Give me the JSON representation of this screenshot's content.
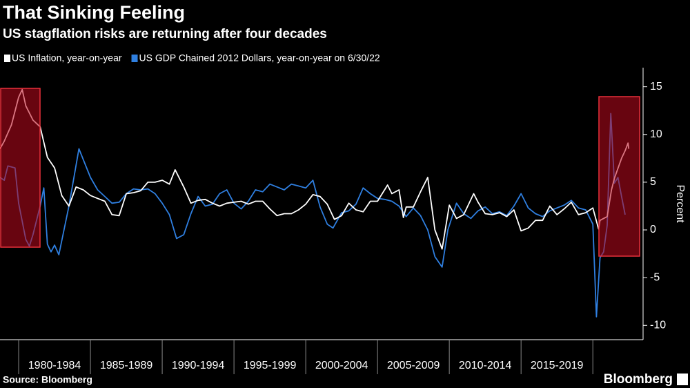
{
  "chart_data": {
    "type": "line",
    "title": "That Sinking Feeling",
    "subtitle": "US stagflation risks are returning after four decades",
    "y_label": "Percent",
    "source": "Source: Bloomberg",
    "brand": "Bloomberg",
    "xlim": [
      1978.7,
      2023.5
    ],
    "ylim": [
      -11.5,
      17
    ],
    "yticks": [
      15,
      10,
      5,
      0,
      -5,
      -10
    ],
    "xticks": [
      {
        "value": 1980,
        "label": "1980-1984"
      },
      {
        "value": 1985,
        "label": "1985-1989"
      },
      {
        "value": 1990,
        "label": "1990-1994"
      },
      {
        "value": 1995,
        "label": "1995-1999"
      },
      {
        "value": 2000,
        "label": "2000-2004"
      },
      {
        "value": 2005,
        "label": "2005-2009"
      },
      {
        "value": 2010,
        "label": "2010-2014"
      },
      {
        "value": 2015,
        "label": "2015-2019"
      }
    ],
    "series": [
      {
        "name": "US Inflation, year-on-year",
        "color": "#ffffff",
        "x": [
          1978.7,
          1979.0,
          1979.5,
          1980.0,
          1980.25,
          1980.5,
          1981.0,
          1981.5,
          1982.0,
          1982.5,
          1983.0,
          1983.5,
          1984.0,
          1984.5,
          1985.0,
          1985.5,
          1986.0,
          1986.5,
          1987.0,
          1987.5,
          1988.0,
          1988.5,
          1989.0,
          1989.5,
          1990.0,
          1990.5,
          1990.9,
          1991.5,
          1992.0,
          1992.5,
          1993.0,
          1993.5,
          1994.0,
          1994.5,
          1995.0,
          1995.5,
          1996.0,
          1996.5,
          1997.0,
          1997.5,
          1998.0,
          1998.5,
          1999.0,
          1999.5,
          2000.0,
          2000.5,
          2001.0,
          2001.5,
          2002.0,
          2002.5,
          2003.0,
          2003.5,
          2004.0,
          2004.5,
          2005.0,
          2005.7,
          2006.0,
          2006.5,
          2006.8,
          2007.0,
          2007.5,
          2008.0,
          2008.5,
          2009.0,
          2009.5,
          2010.0,
          2010.5,
          2011.0,
          2011.7,
          2012.0,
          2012.5,
          2013.0,
          2013.5,
          2014.0,
          2014.5,
          2015.0,
          2015.5,
          2016.0,
          2016.5,
          2017.0,
          2017.5,
          2018.0,
          2018.5,
          2019.0,
          2019.5,
          2020.0,
          2020.4,
          2020.5,
          2021.0,
          2021.3,
          2021.5,
          2022.0,
          2022.25,
          2022.45,
          2022.5
        ],
        "values": [
          8.5,
          9.3,
          11,
          13.9,
          14.7,
          13,
          11.5,
          10.8,
          7.6,
          6.5,
          3.6,
          2.5,
          4.5,
          4.2,
          3.6,
          3.3,
          3.0,
          1.6,
          1.5,
          3.8,
          3.9,
          4.1,
          5.0,
          5.0,
          5.2,
          4.8,
          6.3,
          4.5,
          2.8,
          3.1,
          3.2,
          2.8,
          2.5,
          2.8,
          2.9,
          3.0,
          2.7,
          3.0,
          3.0,
          2.2,
          1.5,
          1.7,
          1.7,
          2.1,
          2.7,
          3.7,
          3.5,
          2.7,
          1.1,
          1.5,
          2.8,
          2.1,
          1.9,
          3.0,
          3.0,
          4.7,
          3.8,
          4.2,
          1.3,
          2.4,
          2.4,
          4.0,
          5.5,
          0.0,
          -2.0,
          2.6,
          1.2,
          1.6,
          3.8,
          2.9,
          1.7,
          1.6,
          1.8,
          1.4,
          2.1,
          -0.1,
          0.2,
          1.0,
          1.0,
          2.5,
          1.6,
          2.2,
          2.9,
          1.6,
          1.8,
          2.3,
          0.1,
          1.0,
          1.4,
          4.2,
          5.4,
          7.5,
          8.3,
          9.1,
          8.5
        ]
      },
      {
        "name": "US GDP Chained 2012 Dollars, year-on-year on 6/30/22",
        "color": "#2f7fe0",
        "x": [
          1978.7,
          1979.0,
          1979.25,
          1979.75,
          1980.0,
          1980.5,
          1980.75,
          1981.0,
          1981.5,
          1981.75,
          1982.0,
          1982.25,
          1982.5,
          1982.8,
          1983.5,
          1984.2,
          1985.0,
          1985.5,
          1986.0,
          1986.5,
          1987.0,
          1987.5,
          1988.0,
          1988.5,
          1989.0,
          1989.5,
          1990.0,
          1990.5,
          1991.0,
          1991.5,
          1992.0,
          1992.5,
          1993.0,
          1993.5,
          1994.0,
          1994.5,
          1995.0,
          1995.5,
          1996.0,
          1996.5,
          1997.0,
          1997.5,
          1998.0,
          1998.5,
          1999.0,
          1999.5,
          2000.0,
          2000.5,
          2001.0,
          2001.5,
          2001.9,
          2002.5,
          2003.0,
          2003.5,
          2004.0,
          2004.5,
          2005.0,
          2005.5,
          2006.0,
          2006.5,
          2007.0,
          2007.5,
          2008.0,
          2008.5,
          2009.0,
          2009.5,
          2009.9,
          2010.5,
          2011.0,
          2011.5,
          2012.0,
          2012.5,
          2013.0,
          2013.5,
          2014.0,
          2014.5,
          2015.0,
          2015.5,
          2016.0,
          2016.5,
          2017.0,
          2017.5,
          2018.0,
          2018.5,
          2019.0,
          2019.5,
          2020.0,
          2020.25,
          2020.5,
          2020.75,
          2021.0,
          2021.25,
          2021.5,
          2021.75,
          2022.0,
          2022.25
        ],
        "values": [
          5.5,
          5.2,
          6.7,
          6.5,
          2.8,
          -1.0,
          -1.7,
          -0.5,
          2.5,
          4.4,
          -1.5,
          -2.3,
          -1.6,
          -2.6,
          2.5,
          8.5,
          5.5,
          4.2,
          3.5,
          2.8,
          2.9,
          3.8,
          4.3,
          4.2,
          4.3,
          3.8,
          2.8,
          1.6,
          -0.9,
          -0.5,
          1.7,
          3.5,
          2.5,
          2.7,
          3.8,
          4.2,
          2.8,
          2.2,
          3.0,
          4.2,
          4.0,
          4.8,
          4.5,
          4.2,
          4.8,
          4.6,
          4.4,
          5.2,
          2.4,
          0.6,
          0.2,
          1.8,
          2.0,
          2.7,
          4.4,
          3.8,
          3.3,
          3.2,
          3.0,
          2.5,
          1.4,
          2.3,
          1.5,
          0.0,
          -2.8,
          -3.9,
          0.0,
          2.8,
          1.7,
          1.2,
          2.0,
          2.4,
          1.7,
          1.9,
          1.5,
          2.5,
          3.8,
          2.3,
          1.7,
          1.4,
          2.0,
          2.3,
          2.6,
          3.1,
          2.3,
          2.1,
          0.6,
          -9.1,
          -2.9,
          -2.3,
          0.5,
          12.2,
          4.9,
          5.5,
          3.5,
          1.6
        ]
      }
    ]
  }
}
